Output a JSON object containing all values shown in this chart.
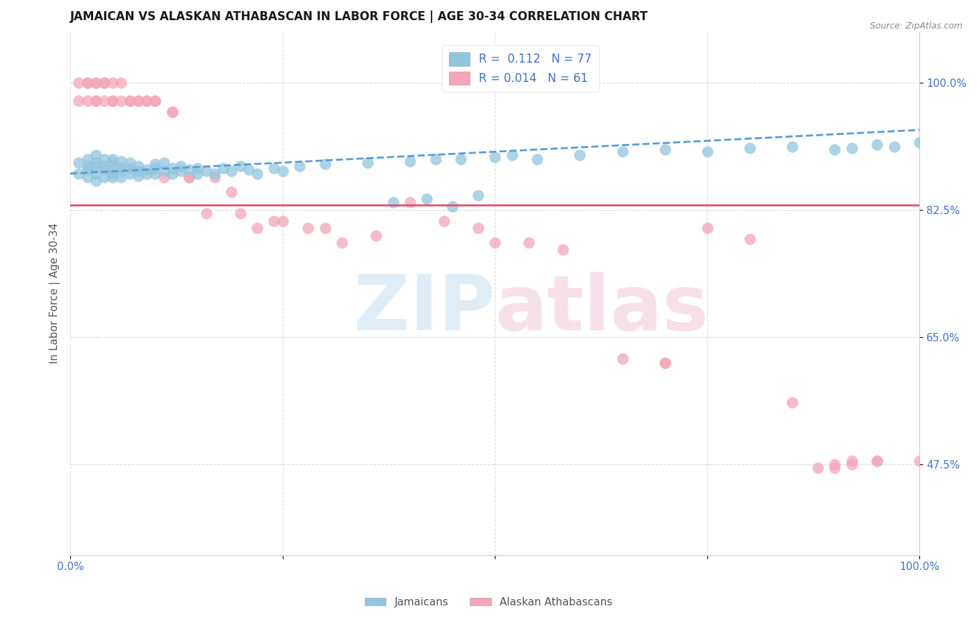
{
  "title": "JAMAICAN VS ALASKAN ATHABASCAN IN LABOR FORCE | AGE 30-34 CORRELATION CHART",
  "source_text": "Source: ZipAtlas.com",
  "ylabel": "In Labor Force | Age 30-34",
  "xlim": [
    0.0,
    1.0
  ],
  "ylim": [
    0.35,
    1.07
  ],
  "yticks": [
    0.475,
    0.65,
    0.825,
    1.0
  ],
  "ytick_labels": [
    "47.5%",
    "65.0%",
    "82.5%",
    "100.0%"
  ],
  "legend_R_blue": "0.112",
  "legend_N_blue": "77",
  "legend_R_pink": "0.014",
  "legend_N_pink": "61",
  "blue_color": "#92c5de",
  "pink_color": "#f4a6b8",
  "trend_blue_color": "#5b9bd5",
  "trend_pink_color": "#e05070",
  "grid_color": "#cccccc",
  "title_color": "#1a1a1a",
  "axis_label_color": "#4472c4",
  "blue_trend_start_y": 0.875,
  "blue_trend_end_y": 0.935,
  "pink_trend_y": 0.832,
  "blue_points_x": [
    0.01,
    0.01,
    0.02,
    0.02,
    0.02,
    0.02,
    0.03,
    0.03,
    0.03,
    0.03,
    0.03,
    0.04,
    0.04,
    0.04,
    0.04,
    0.05,
    0.05,
    0.05,
    0.05,
    0.05,
    0.06,
    0.06,
    0.06,
    0.06,
    0.07,
    0.07,
    0.07,
    0.08,
    0.08,
    0.08,
    0.09,
    0.09,
    0.1,
    0.1,
    0.1,
    0.11,
    0.11,
    0.12,
    0.12,
    0.13,
    0.13,
    0.14,
    0.15,
    0.15,
    0.16,
    0.17,
    0.18,
    0.19,
    0.2,
    0.21,
    0.22,
    0.24,
    0.25,
    0.27,
    0.3,
    0.35,
    0.4,
    0.43,
    0.46,
    0.5,
    0.52,
    0.55,
    0.6,
    0.65,
    0.7,
    0.75,
    0.8,
    0.85,
    0.9,
    0.92,
    0.95,
    0.97,
    1.0,
    0.38,
    0.42,
    0.45,
    0.48
  ],
  "blue_points_y": [
    0.875,
    0.89,
    0.88,
    0.895,
    0.87,
    0.885,
    0.885,
    0.875,
    0.89,
    0.9,
    0.865,
    0.88,
    0.895,
    0.87,
    0.885,
    0.875,
    0.89,
    0.88,
    0.87,
    0.895,
    0.883,
    0.87,
    0.892,
    0.878,
    0.882,
    0.875,
    0.89,
    0.878,
    0.885,
    0.872,
    0.88,
    0.875,
    0.882,
    0.875,
    0.888,
    0.878,
    0.89,
    0.875,
    0.882,
    0.878,
    0.885,
    0.88,
    0.875,
    0.882,
    0.878,
    0.875,
    0.882,
    0.878,
    0.885,
    0.88,
    0.875,
    0.882,
    0.878,
    0.885,
    0.888,
    0.89,
    0.892,
    0.895,
    0.895,
    0.898,
    0.9,
    0.895,
    0.9,
    0.905,
    0.908,
    0.905,
    0.91,
    0.912,
    0.908,
    0.91,
    0.915,
    0.912,
    0.918,
    0.835,
    0.84,
    0.83,
    0.845
  ],
  "pink_points_x": [
    0.01,
    0.01,
    0.02,
    0.02,
    0.02,
    0.03,
    0.03,
    0.04,
    0.04,
    0.05,
    0.05,
    0.06,
    0.07,
    0.08,
    0.09,
    0.1,
    0.11,
    0.12,
    0.14,
    0.16,
    0.19,
    0.22,
    0.24,
    0.28,
    0.32,
    0.36,
    0.4,
    0.44,
    0.48,
    0.5,
    0.54,
    0.58,
    0.65,
    0.7,
    0.75,
    0.8,
    0.85,
    0.9,
    0.92,
    0.95,
    1.0,
    0.03,
    0.03,
    0.04,
    0.05,
    0.06,
    0.07,
    0.08,
    0.09,
    0.1,
    0.12,
    0.14,
    0.17,
    0.2,
    0.25,
    0.3,
    0.7,
    0.88,
    0.9,
    0.92,
    0.95
  ],
  "pink_points_y": [
    1.0,
    0.975,
    1.0,
    0.975,
    1.0,
    1.0,
    0.975,
    1.0,
    0.975,
    1.0,
    0.975,
    0.975,
    0.975,
    0.975,
    0.975,
    0.975,
    0.87,
    0.96,
    0.87,
    0.82,
    0.85,
    0.8,
    0.81,
    0.8,
    0.78,
    0.79,
    0.835,
    0.81,
    0.8,
    0.78,
    0.78,
    0.77,
    0.62,
    0.615,
    0.8,
    0.785,
    0.56,
    0.47,
    0.475,
    0.48,
    0.48,
    1.0,
    0.975,
    1.0,
    0.975,
    1.0,
    0.975,
    0.975,
    0.975,
    0.975,
    0.96,
    0.87,
    0.87,
    0.82,
    0.81,
    0.8,
    0.615,
    0.47,
    0.475,
    0.48,
    0.48
  ]
}
